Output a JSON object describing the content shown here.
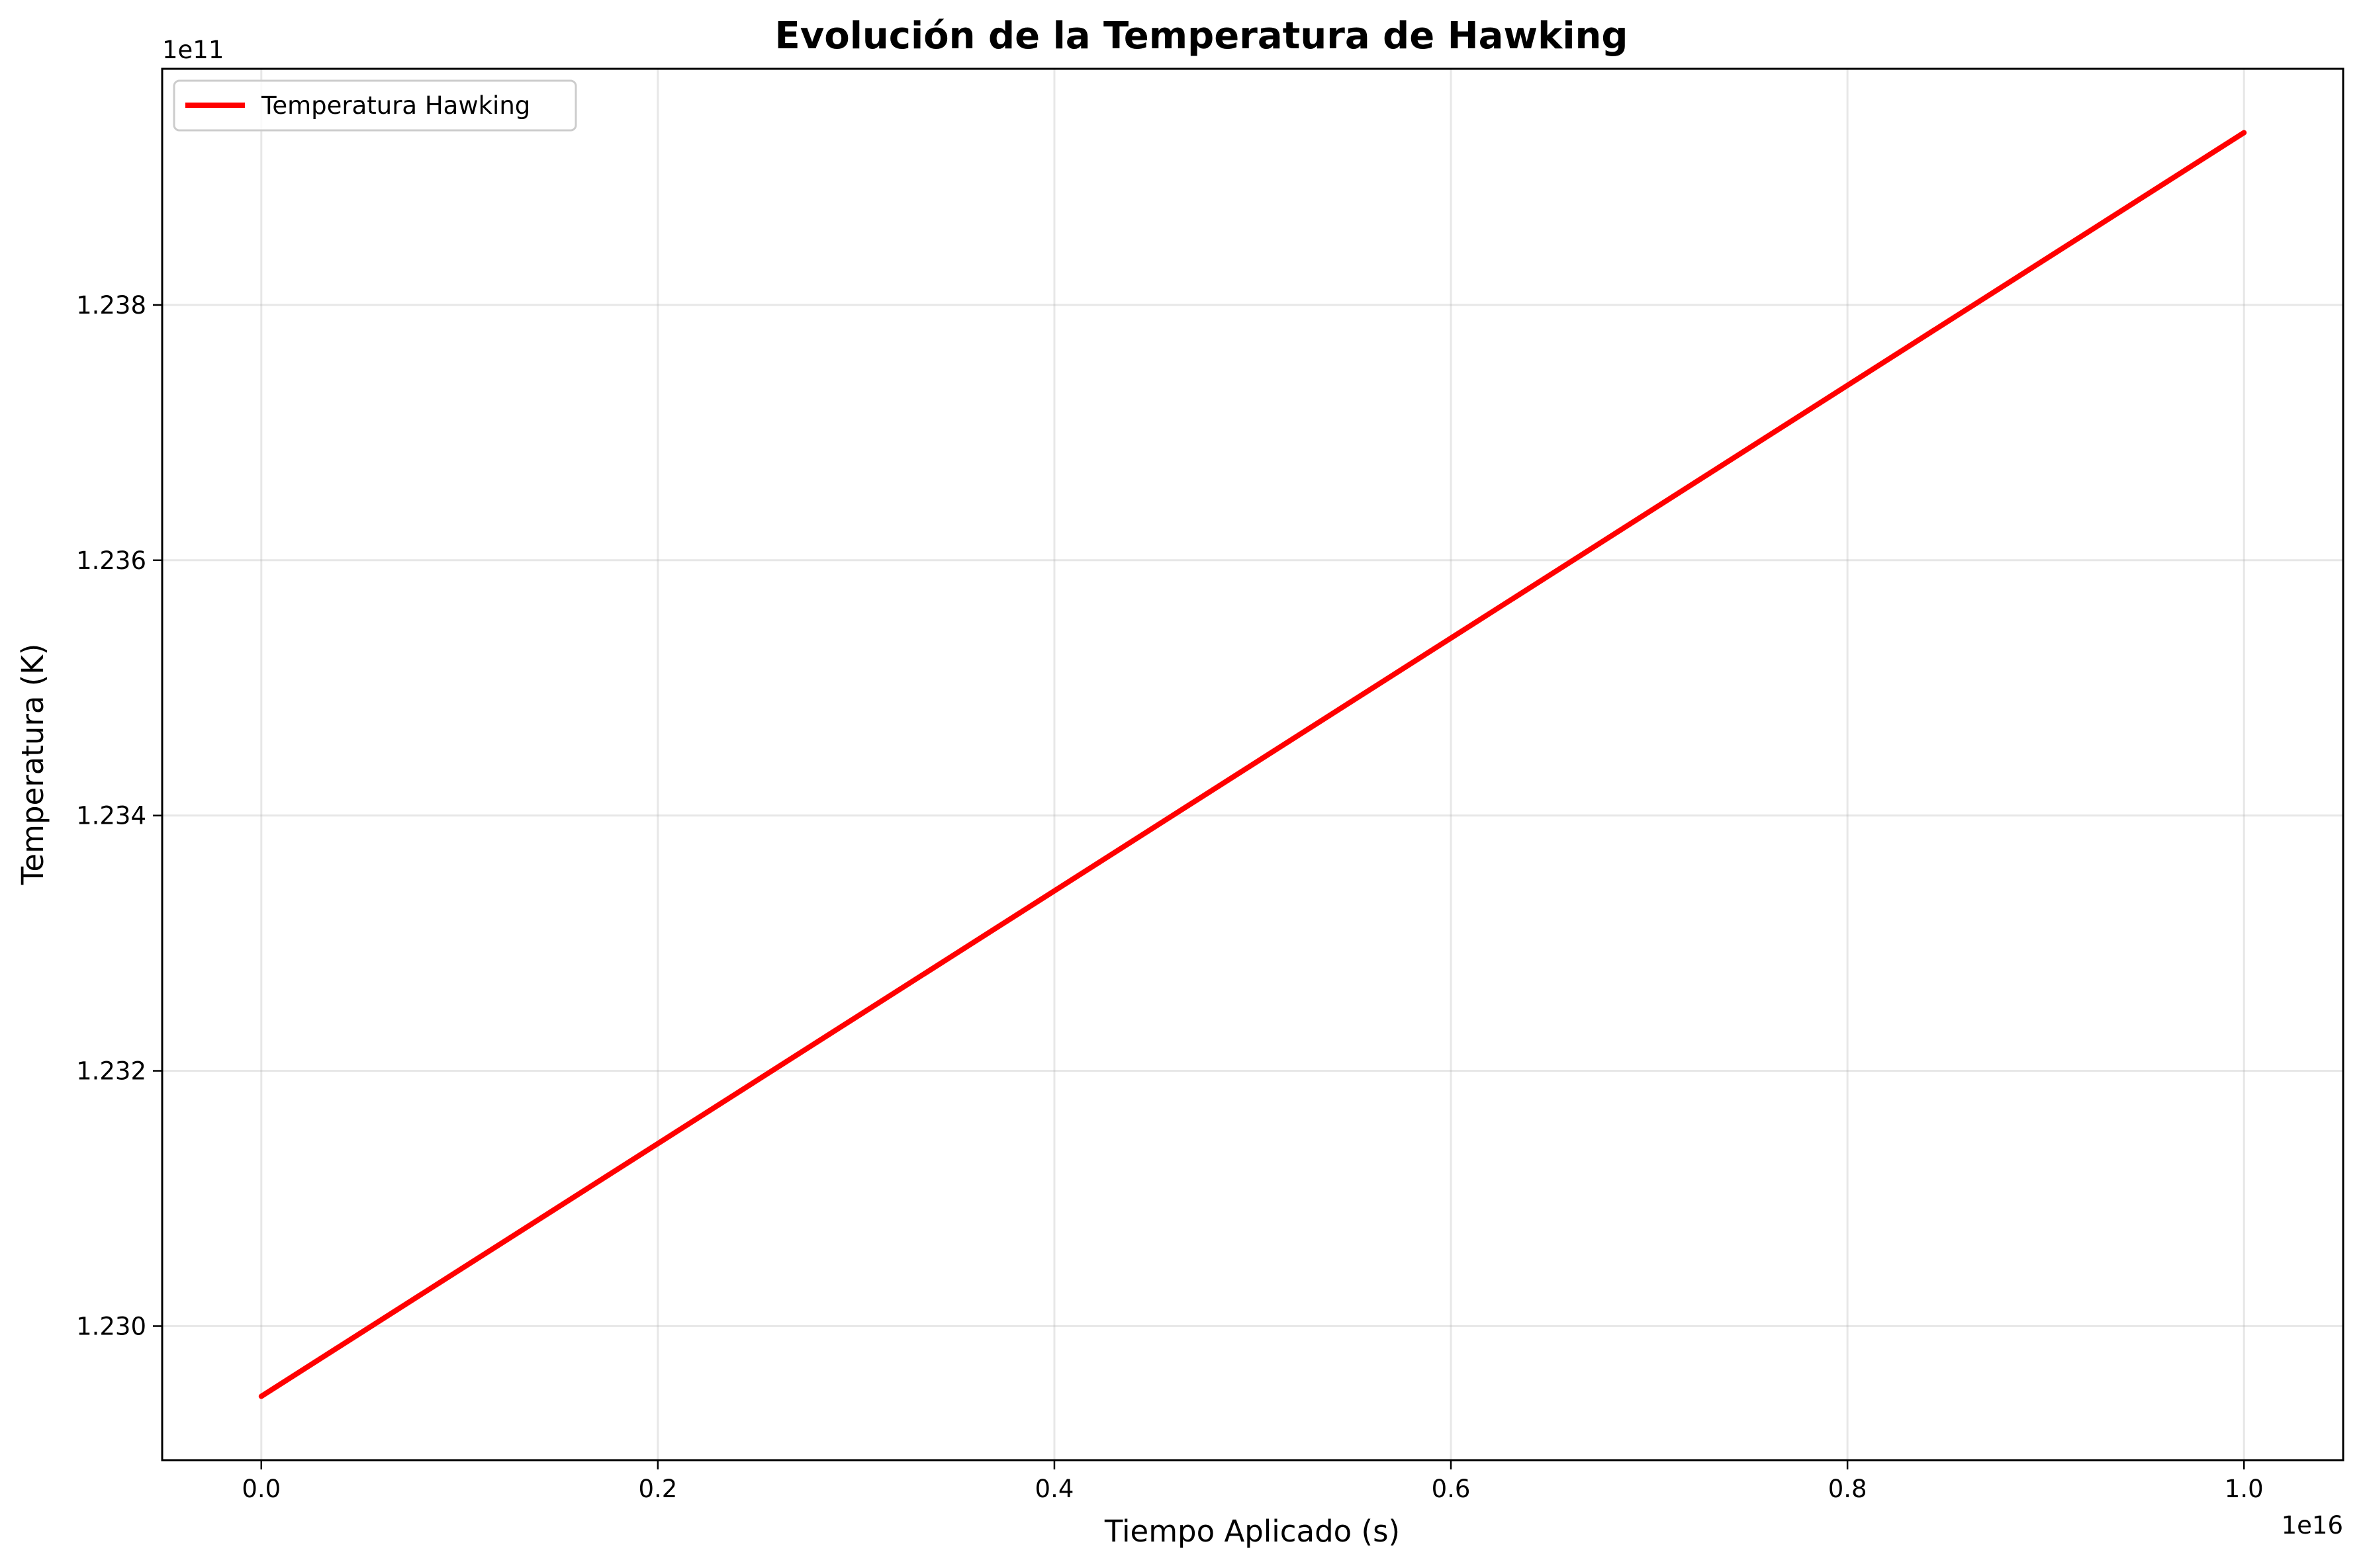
{
  "chart_data": {
    "type": "line",
    "title": "Evolución de la Temperatura de Hawking",
    "xlabel": "Tiempo Aplicado (s)",
    "ylabel": "Temperatura (K)",
    "x_offset_label": "1e16",
    "y_offset_label": "1e11",
    "x_scale": 1e+16,
    "y_scale": 100000000000.0,
    "xlim": [
      -0.05,
      1.05
    ],
    "ylim": [
      1.22895,
      1.23985
    ],
    "x_ticks": [
      0.0,
      0.2,
      0.4,
      0.6,
      0.8,
      1.0
    ],
    "x_tick_labels": [
      "0.0",
      "0.2",
      "0.4",
      "0.6",
      "0.8",
      "1.0"
    ],
    "y_ticks": [
      1.23,
      1.232,
      1.234,
      1.236,
      1.238
    ],
    "y_tick_labels": [
      "1.230",
      "1.232",
      "1.234",
      "1.236",
      "1.238"
    ],
    "grid": true,
    "legend_position": "upper-left",
    "series": [
      {
        "name": "Temperatura Hawking",
        "color": "#ff0000",
        "x": [
          0.0,
          0.1,
          0.2,
          0.3,
          0.4,
          0.5,
          0.6,
          0.7,
          0.8,
          0.9,
          1.0
        ],
        "y": [
          1.22945,
          1.23044,
          1.23143,
          1.23242,
          1.23341,
          1.2344,
          1.23539,
          1.23638,
          1.23737,
          1.23836,
          1.23935
        ]
      }
    ]
  }
}
